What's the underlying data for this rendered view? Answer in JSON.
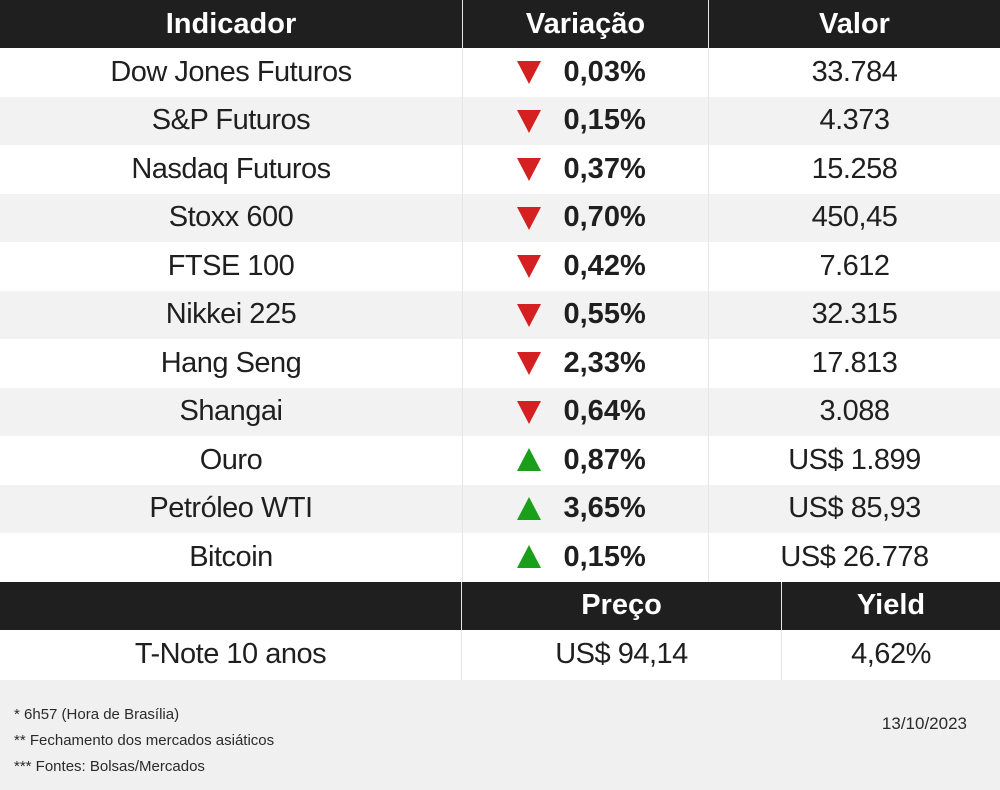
{
  "header": {
    "indicator": "Indicador",
    "variation": "Variação",
    "value": "Valor"
  },
  "colors": {
    "down": "#d42020",
    "up": "#1a9f1a",
    "header_bg": "#1f1f1f"
  },
  "rows": [
    {
      "name": "Dow Jones Futuros",
      "direction": "down",
      "change": "0,03%",
      "value": "33.784"
    },
    {
      "name": "S&P Futuros",
      "direction": "down",
      "change": "0,15%",
      "value": "4.373"
    },
    {
      "name": "Nasdaq Futuros",
      "direction": "down",
      "change": "0,37%",
      "value": "15.258"
    },
    {
      "name": "Stoxx 600",
      "direction": "down",
      "change": "0,70%",
      "value": "450,45"
    },
    {
      "name": "FTSE 100",
      "direction": "down",
      "change": "0,42%",
      "value": "7.612"
    },
    {
      "name": "Nikkei 225",
      "direction": "down",
      "change": "0,55%",
      "value": "32.315"
    },
    {
      "name": "Hang Seng",
      "direction": "down",
      "change": "2,33%",
      "value": "17.813"
    },
    {
      "name": "Shangai",
      "direction": "down",
      "change": "0,64%",
      "value": "3.088"
    },
    {
      "name": "Ouro",
      "direction": "up",
      "change": "0,87%",
      "value": "US$ 1.899"
    },
    {
      "name": "Petróleo WTI",
      "direction": "up",
      "change": "3,65%",
      "value": "US$ 85,93"
    },
    {
      "name": "Bitcoin",
      "direction": "up",
      "change": "0,15%",
      "value": "US$ 26.778"
    }
  ],
  "treasury": {
    "header_price": "Preço",
    "header_yield": "Yield",
    "name": "T-Note 10 anos",
    "price": "US$ 94,14",
    "yield": "4,62%"
  },
  "footer": {
    "notes": [
      "* 6h57 (Hora de Brasília)",
      "** Fechamento dos mercados asiáticos",
      "*** Fontes: Bolsas/Mercados"
    ],
    "date": "13/10/2023"
  }
}
